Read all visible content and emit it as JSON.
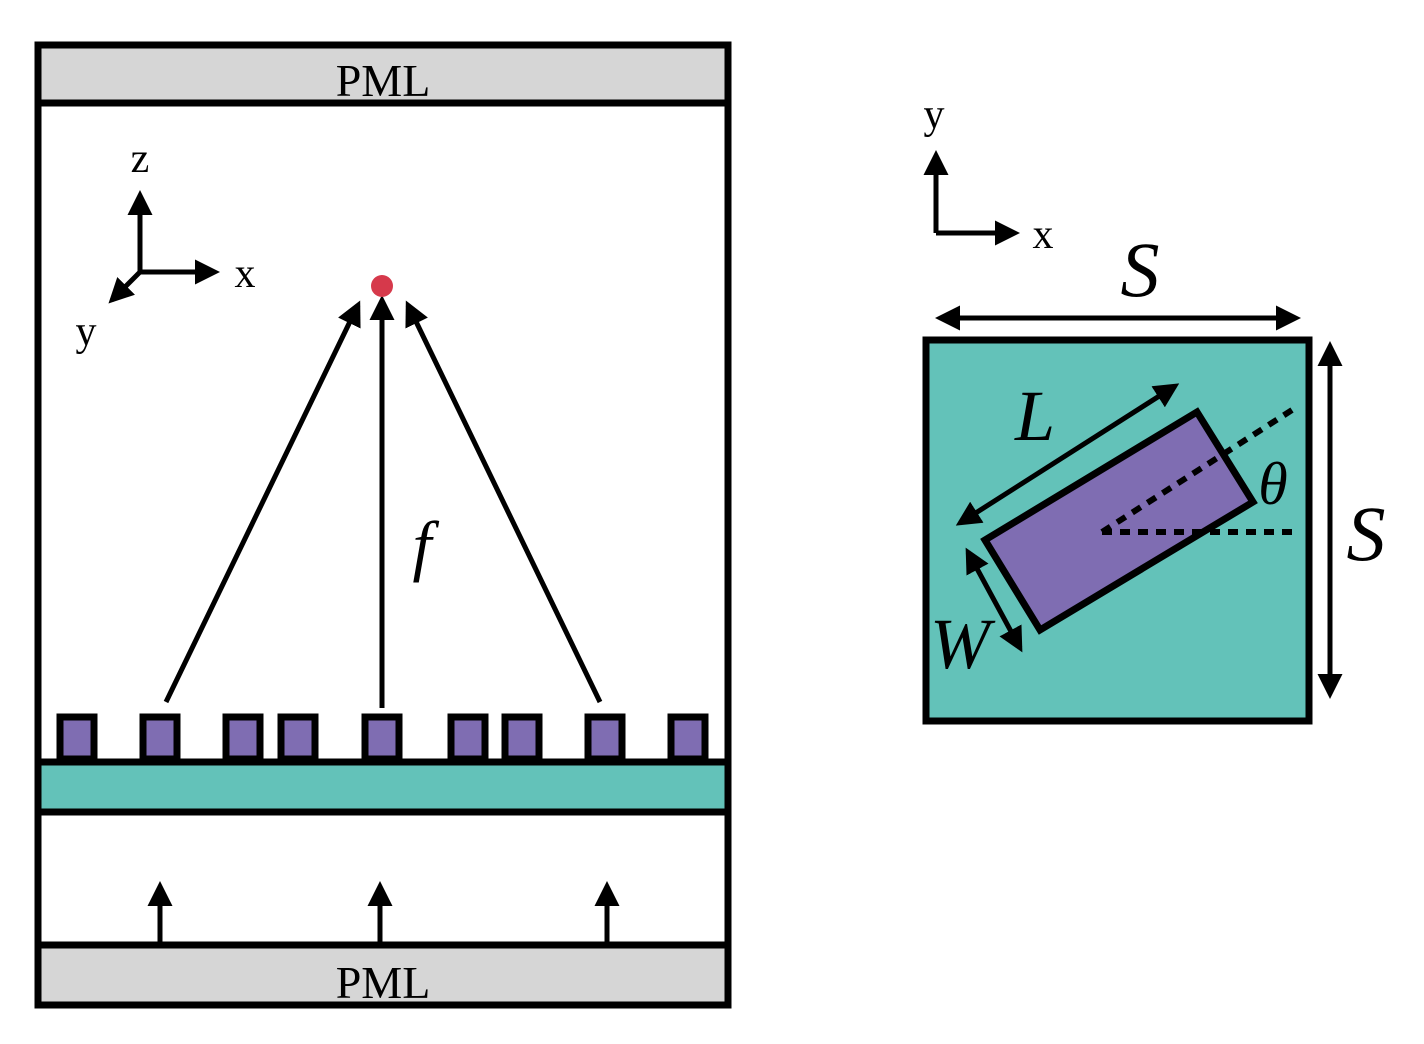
{
  "colors": {
    "pml": "#d6d6d6",
    "substrate": "#63c2b9",
    "pillar": "#7f6db2",
    "focus": "#d6394b",
    "outline": "#000000"
  },
  "left_panel": {
    "pml_top": "PML",
    "pml_bottom": "PML",
    "axes": {
      "z": "z",
      "x": "x",
      "y": "y"
    },
    "focal_label": "f",
    "pillar_count": 9,
    "source_arrow_count": 3
  },
  "right_panel": {
    "axes": {
      "y": "y",
      "x": "x"
    },
    "period_label_top": "S",
    "period_label_side": "S",
    "length_label": "L",
    "width_label": "W",
    "angle_label": "θ"
  }
}
